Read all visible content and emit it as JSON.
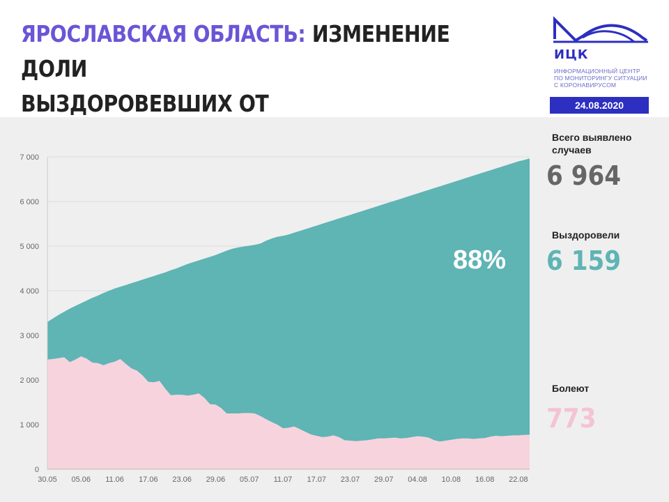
{
  "header": {
    "title_accent": "ЯРОСЛАВСКАЯ ОБЛАСТЬ:",
    "title_line1_rest": " ИЗМЕНЕНИЕ ДОЛИ",
    "title_line2": "ВЫЗДОРОВЕВШИХ ОТ КОРОНАВИРУСА",
    "logo_abbr": "ИЦК",
    "logo_sub_1": "ИНФОРМАЦИОННЫЙ ЦЕНТР",
    "logo_sub_2": "ПО МОНИТОРИНГУ СИТУАЦИИ",
    "logo_sub_3": "С КОРОНАВИРУСОМ",
    "date": "24.08.2020"
  },
  "stats": {
    "total_label": "Всего выявлено случаев",
    "total_value": "6 964",
    "recovered_label": "Выздоровели",
    "recovered_value": "6 159",
    "sick_label": "Болеют",
    "sick_value": "773",
    "recovered_percent": "88%"
  },
  "colors": {
    "accent": "#6b55d6",
    "logo_blue": "#2c2fc0",
    "recovered": "#5fb4b4",
    "sick": "#f7d3de",
    "total_value": "#666666",
    "recovered_value": "#5fb4b4",
    "sick_value": "#f4c4d2",
    "panel_bg": "#efefef"
  },
  "chart_data": {
    "type": "area",
    "ylim": [
      0,
      7000
    ],
    "y_ticks": [
      0,
      1000,
      2000,
      3000,
      4000,
      5000,
      6000,
      7000
    ],
    "y_tick_labels": [
      "0",
      "1 000",
      "2 000",
      "3 000",
      "4 000",
      "5 000",
      "6 000",
      "7 000"
    ],
    "x_tick_labels": [
      "30.05",
      "05.06",
      "11.06",
      "17.06",
      "23.06",
      "29.06",
      "05.07",
      "11.07",
      "17.07",
      "23.07",
      "29.07",
      "04.08",
      "10.08",
      "16.08",
      "22.08"
    ],
    "x_tick_every": 6,
    "n_days": 87,
    "series": [
      {
        "name": "Выздоровели",
        "values": []
      },
      {
        "name": "Болеют",
        "values": [
          2460,
          2470,
          2490,
          2510,
          2400,
          2460,
          2530,
          2480,
          2390,
          2380,
          2330,
          2380,
          2410,
          2470,
          2360,
          2260,
          2210,
          2100,
          1960,
          1950,
          1980,
          1810,
          1660,
          1670,
          1670,
          1650,
          1670,
          1700,
          1600,
          1460,
          1450,
          1370,
          1250,
          1250,
          1250,
          1260,
          1260,
          1250,
          1190,
          1120,
          1060,
          1000,
          920,
          930,
          960,
          900,
          840,
          780,
          750,
          720,
          730,
          760,
          720,
          650,
          640,
          630,
          640,
          650,
          670,
          690,
          690,
          700,
          710,
          690,
          700,
          720,
          740,
          730,
          710,
          650,
          620,
          640,
          660,
          680,
          690,
          690,
          680,
          690,
          700,
          730,
          750,
          740,
          750,
          760,
          760,
          770,
          773
        ]
      }
    ],
    "total_cases": [
      3300,
      3380,
      3460,
      3530,
      3600,
      3660,
      3720,
      3780,
      3840,
      3890,
      3950,
      4000,
      4050,
      4090,
      4130,
      4170,
      4210,
      4250,
      4290,
      4330,
      4370,
      4410,
      4460,
      4500,
      4550,
      4600,
      4640,
      4680,
      4720,
      4760,
      4800,
      4850,
      4900,
      4940,
      4970,
      4990,
      5010,
      5030,
      5060,
      5120,
      5170,
      5210,
      5230,
      5260,
      5300,
      5340,
      5380,
      5420,
      5460,
      5500,
      5540,
      5580,
      5620,
      5660,
      5700,
      5740,
      5780,
      5820,
      5860,
      5900,
      5940,
      5980,
      6020,
      6060,
      6100,
      6140,
      6180,
      6220,
      6260,
      6300,
      6340,
      6380,
      6420,
      6460,
      6500,
      6540,
      6580,
      6620,
      6660,
      6700,
      6740,
      6780,
      6820,
      6860,
      6900,
      6930,
      6964
    ]
  }
}
